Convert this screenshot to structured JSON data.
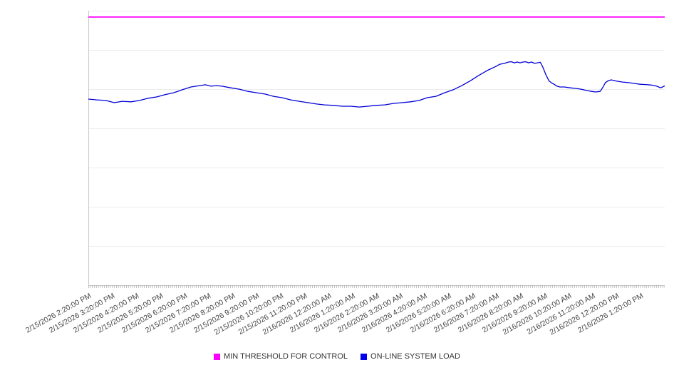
{
  "chart_data": {
    "type": "line",
    "title": "",
    "x_axis": {
      "tick_labels": [
        "2/15/2026 2:20:00 PM",
        "2/15/2026 3:20:00 PM",
        "2/15/2026 4:20:00 PM",
        "2/15/2026 5:20:00 PM",
        "2/15/2026 6:20:00 PM",
        "2/15/2026 7:20:00 PM",
        "2/15/2026 8:20:00 PM",
        "2/15/2026 9:20:00 PM",
        "2/15/2026 10:20:00 PM",
        "2/15/2026 11:20:00 PM",
        "2/16/2026 12:20:00 AM",
        "2/16/2026 1:20:00 AM",
        "2/16/2026 2:20:00 AM",
        "2/16/2026 3:20:00 AM",
        "2/16/2026 4:20:00 AM",
        "2/16/2026 5:20:00 AM",
        "2/16/2026 6:20:00 AM",
        "2/16/2026 7:20:00 AM",
        "2/16/2026 8:20:00 AM",
        "2/16/2026 9:20:00 AM",
        "2/16/2026 10:20:00 AM",
        "2/16/2026 11:20:00 AM",
        "2/16/2026 12:20:00 PM",
        "2/16/2026 1:20:00 PM"
      ],
      "minor_ticks_per_hour": 12,
      "label_rotation_deg": -29
    },
    "y_axis": {
      "tick_labels_visible": false,
      "gridline_rows": 7
    },
    "note": "No numeric y-axis scale is shown; series values are percent of plot height above the x-axis.",
    "series": [
      {
        "name": "MIN THRESHOLD FOR CONTROL",
        "color": "#ff00ff",
        "width": 1.8,
        "points_pct": [
          [
            0,
            97.7
          ],
          [
            100,
            97.7
          ]
        ]
      },
      {
        "name": "ON-LINE SYSTEM LOAD",
        "color": "#0000d8",
        "width": 1.3,
        "points_pct": [
          [
            0,
            67.8
          ],
          [
            1.5,
            67.5
          ],
          [
            3.0,
            67.3
          ],
          [
            4.5,
            66.5
          ],
          [
            5.9,
            67.0
          ],
          [
            7.4,
            66.8
          ],
          [
            8.9,
            67.3
          ],
          [
            10.4,
            68.1
          ],
          [
            11.9,
            68.6
          ],
          [
            13.3,
            69.4
          ],
          [
            14.8,
            70.1
          ],
          [
            16.3,
            71.2
          ],
          [
            17.8,
            72.2
          ],
          [
            19.3,
            72.7
          ],
          [
            20.3,
            73.0
          ],
          [
            21.3,
            72.5
          ],
          [
            22.2,
            72.7
          ],
          [
            23.2,
            72.5
          ],
          [
            24.7,
            71.9
          ],
          [
            26.2,
            71.4
          ],
          [
            27.7,
            70.6
          ],
          [
            29.2,
            70.1
          ],
          [
            30.7,
            69.6
          ],
          [
            32.1,
            68.8
          ],
          [
            33.6,
            68.3
          ],
          [
            35.1,
            67.5
          ],
          [
            36.6,
            67.0
          ],
          [
            38.1,
            66.5
          ],
          [
            39.6,
            66.0
          ],
          [
            41.0,
            65.7
          ],
          [
            42.5,
            65.5
          ],
          [
            44.0,
            65.2
          ],
          [
            45.5,
            65.2
          ],
          [
            47.0,
            64.9
          ],
          [
            48.5,
            65.2
          ],
          [
            49.9,
            65.5
          ],
          [
            51.4,
            65.7
          ],
          [
            52.9,
            66.2
          ],
          [
            54.4,
            66.5
          ],
          [
            55.9,
            66.8
          ],
          [
            57.4,
            67.3
          ],
          [
            58.8,
            68.3
          ],
          [
            60.3,
            68.8
          ],
          [
            61.8,
            70.1
          ],
          [
            63.3,
            71.2
          ],
          [
            64.8,
            72.7
          ],
          [
            66.3,
            74.5
          ],
          [
            67.7,
            76.4
          ],
          [
            69.2,
            78.2
          ],
          [
            70.7,
            79.7
          ],
          [
            71.4,
            80.5
          ],
          [
            72.2,
            80.8
          ],
          [
            72.9,
            81.3
          ],
          [
            73.4,
            81.4
          ],
          [
            73.9,
            81.0
          ],
          [
            74.4,
            81.3
          ],
          [
            74.9,
            81.0
          ],
          [
            75.4,
            81.3
          ],
          [
            75.9,
            81.4
          ],
          [
            76.4,
            81.0
          ],
          [
            76.9,
            81.3
          ],
          [
            77.4,
            80.8
          ],
          [
            77.9,
            81.0
          ],
          [
            78.4,
            81.2
          ],
          [
            78.6,
            80.5
          ],
          [
            78.9,
            79.2
          ],
          [
            79.4,
            76.6
          ],
          [
            79.9,
            74.5
          ],
          [
            80.3,
            73.8
          ],
          [
            80.8,
            73.2
          ],
          [
            81.3,
            72.5
          ],
          [
            81.8,
            72.2
          ],
          [
            82.6,
            72.2
          ],
          [
            83.6,
            71.9
          ],
          [
            84.5,
            71.7
          ],
          [
            85.5,
            71.4
          ],
          [
            86.5,
            70.9
          ],
          [
            87.3,
            70.6
          ],
          [
            88.0,
            70.4
          ],
          [
            88.8,
            70.6
          ],
          [
            89.3,
            72.2
          ],
          [
            89.7,
            73.8
          ],
          [
            90.2,
            74.5
          ],
          [
            90.7,
            74.8
          ],
          [
            91.7,
            74.3
          ],
          [
            92.7,
            74.0
          ],
          [
            93.7,
            73.8
          ],
          [
            94.7,
            73.5
          ],
          [
            95.7,
            73.2
          ],
          [
            96.7,
            73.1
          ],
          [
            97.7,
            72.9
          ],
          [
            98.6,
            72.5
          ],
          [
            99.3,
            71.9
          ],
          [
            100,
            72.6
          ]
        ]
      }
    ],
    "legend_position": "bottom-center"
  }
}
